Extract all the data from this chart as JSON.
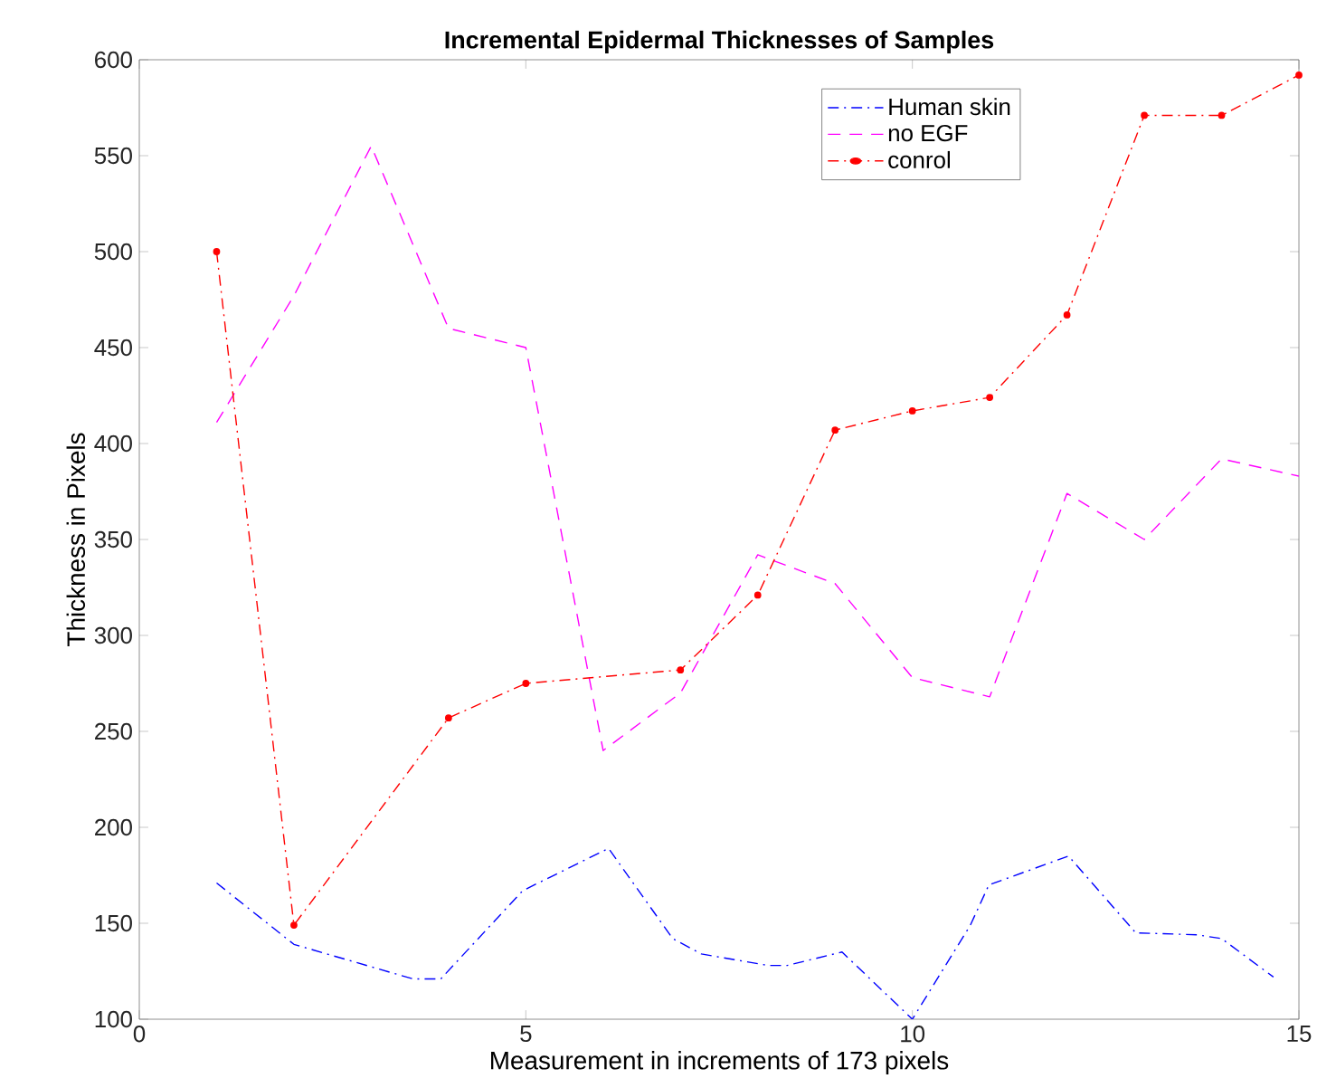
{
  "chart_data": {
    "type": "line",
    "title": "Incremental Epidermal Thicknesses of Samples",
    "xlabel": "Measurement in increments of 173 pixels",
    "ylabel": "Thickness in Pixels",
    "xlim": [
      0,
      15
    ],
    "xticks": [
      0,
      5,
      10,
      15
    ],
    "ylim": [
      100,
      600
    ],
    "yticks": [
      100,
      150,
      200,
      250,
      300,
      350,
      400,
      450,
      500,
      550,
      600
    ],
    "grid": false,
    "legend": "top right",
    "series": [
      {
        "name": "Human skin",
        "color": "#0000ff",
        "line_style": "dashdot",
        "marker": "none",
        "x": [
          1,
          2,
          3.54,
          3.9,
          4.96,
          6.07,
          6.9,
          7.27,
          8.14,
          8.38,
          9.09,
          10,
          10.75,
          10.99,
          12.02,
          12.89,
          13.68,
          14,
          14.67
        ],
        "values": [
          171,
          139,
          121,
          121,
          167,
          189,
          142,
          134,
          128,
          128,
          135,
          100,
          149,
          170,
          185,
          145,
          144,
          142,
          122
        ]
      },
      {
        "name": "no EGF",
        "color": "#ff00ff",
        "line_style": "dashed",
        "marker": "none",
        "x": [
          1,
          2,
          3,
          4,
          5,
          6,
          7,
          8,
          9,
          10,
          11,
          12,
          13,
          14,
          15
        ],
        "values": [
          411,
          477,
          555,
          460,
          450,
          240,
          270,
          342,
          327,
          278,
          268,
          374,
          350,
          392,
          383
        ]
      },
      {
        "name": "conrol",
        "color": "#ff0000",
        "line_style": "dashdot",
        "marker": "circle",
        "x": [
          1,
          2,
          4,
          5,
          7,
          8,
          9,
          10,
          11,
          12,
          13,
          14,
          15
        ],
        "values": [
          500,
          149,
          257,
          275,
          282,
          321,
          407,
          417,
          424,
          467,
          571,
          571,
          592
        ]
      }
    ]
  }
}
